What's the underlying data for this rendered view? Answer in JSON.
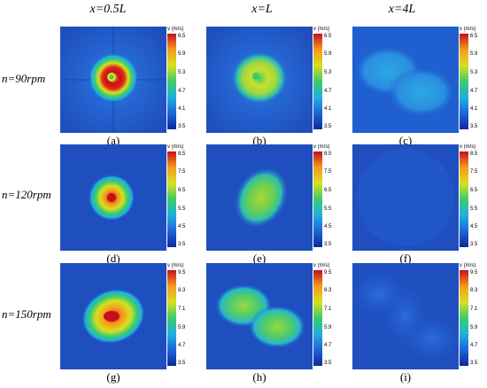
{
  "columns": [
    "x=0.5L",
    "x=L",
    "x=4L"
  ],
  "rows": [
    {
      "label": "n=90rpm",
      "ticks": [
        "6.5",
        "5.9",
        "5.3",
        "4.7",
        "4.1",
        "3.5"
      ]
    },
    {
      "label": "n=120rpm",
      "ticks": [
        "8.5",
        "7.5",
        "6.5",
        "5.5",
        "4.5",
        "3.5"
      ]
    },
    {
      "label": "n=150rpm",
      "ticks": [
        "9.5",
        "8.3",
        "7.1",
        "5.9",
        "4.7",
        "3.5"
      ]
    }
  ],
  "colorbar_title": "v (m/s)",
  "captions": [
    "(a)",
    "(b)",
    "(c)",
    "(d)",
    "(e)",
    "(f)",
    "(g)",
    "(h)",
    "(i)"
  ],
  "colors": {
    "background": "#1f4fbf",
    "colormap": [
      "#0b2a9a",
      "#1f64d8",
      "#1fb0e0",
      "#3ccc6a",
      "#d8e020",
      "#f59a1c",
      "#e02a1c",
      "#c4101c"
    ]
  }
}
